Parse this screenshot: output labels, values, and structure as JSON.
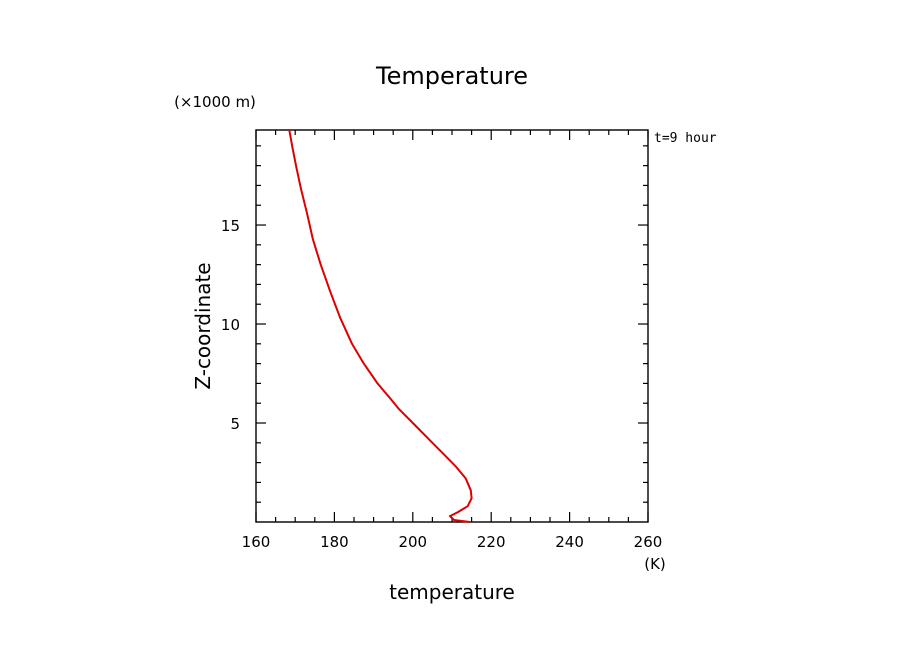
{
  "chart_data": {
    "type": "line",
    "title": "Temperature",
    "xlabel": "temperature",
    "ylabel": "Z-coordinate",
    "x_unit": "(K)",
    "y_unit": "(×1000 m)",
    "time_label": "t=9 hour",
    "xlim": [
      160,
      260
    ],
    "ylim": [
      0,
      19.8
    ],
    "x_ticks": [
      160,
      180,
      200,
      220,
      240,
      260
    ],
    "y_ticks": [
      5,
      10,
      15
    ],
    "grid": false,
    "series": [
      {
        "color": "#dd0000",
        "x": [
          214.5,
          210.5,
          209.5,
          211.5,
          214.0,
          215.0,
          214.8,
          213.5,
          211.0,
          208.0,
          204.5,
          200.5,
          196.5,
          194.0,
          191.0,
          187.5,
          184.5,
          181.5,
          179.0,
          176.5,
          174.5,
          173.0,
          171.5,
          170.3,
          169.3,
          168.5
        ],
        "y": [
          0.0,
          0.1,
          0.3,
          0.5,
          0.8,
          1.2,
          1.6,
          2.2,
          2.8,
          3.4,
          4.1,
          4.9,
          5.7,
          6.3,
          7.0,
          8.0,
          9.0,
          10.3,
          11.6,
          13.0,
          14.3,
          15.6,
          16.8,
          17.9,
          18.9,
          19.8
        ]
      }
    ]
  }
}
